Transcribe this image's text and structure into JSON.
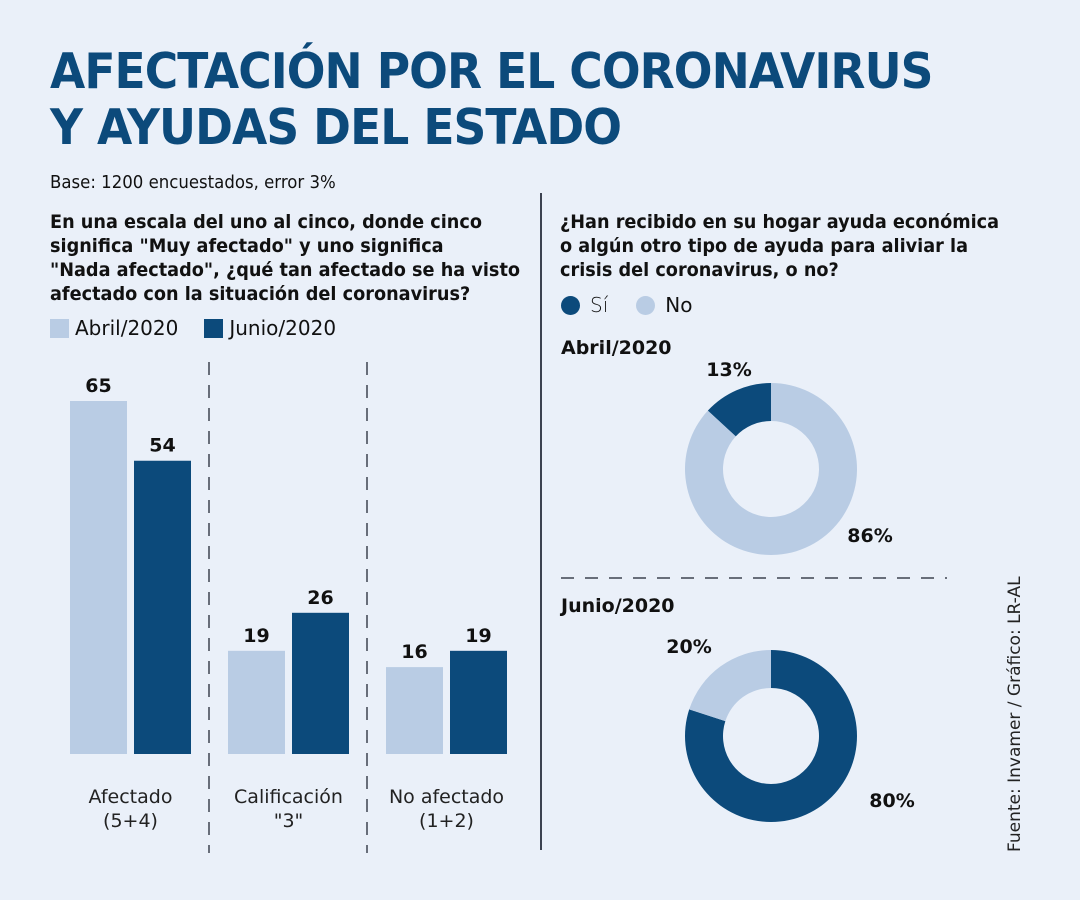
{
  "title_line1": "AFECTACIÓN POR EL CORONAVIRUS",
  "title_line2": "Y AYUDAS DEL ESTADO",
  "subtitle": "Base: 1200 encuestados, error 3%",
  "source": "Fuente: Invamer / Gráfico: LR-AL",
  "colors": {
    "light": "#b9cce4",
    "dark": "#0c4a7b",
    "title": "#0c4a7b",
    "background": "#eaf0f9"
  },
  "left": {
    "question_lines": [
      "En una escala del uno al cinco, donde cinco",
      "significa \"Muy afectado\" y uno significa",
      "\"Nada afectado\", ¿qué tan afectado se ha visto",
      "afectado con la situación del coronavirus?"
    ],
    "legend": [
      {
        "label": "Abril/2020"
      },
      {
        "label": "Junio/2020"
      }
    ]
  },
  "right": {
    "question_lines": [
      "¿Han recibido en su hogar ayuda económica",
      "o algún otro tipo de ayuda para aliviar la",
      "crisis del coronavirus, o no?"
    ],
    "legend": [
      {
        "label": "Sí"
      },
      {
        "label": "No"
      }
    ],
    "periods": [
      "Abril/2020",
      "Junio/2020"
    ]
  },
  "chart_data": [
    {
      "type": "bar",
      "title": "¿Qué tan afectado se ha visto con la situación del coronavirus?",
      "categories": [
        [
          "Afectado",
          "(5+4)"
        ],
        [
          "Calificación",
          "\"3\""
        ],
        [
          "No afectado",
          "(1+2)"
        ]
      ],
      "series": [
        {
          "name": "Abril/2020",
          "values": [
            65,
            19,
            16
          ]
        },
        {
          "name": "Junio/2020",
          "values": [
            54,
            26,
            19
          ]
        }
      ],
      "ylim": [
        0,
        65
      ],
      "grid": false,
      "legend": "top-left",
      "xlabel": "",
      "ylabel": ""
    },
    {
      "type": "pie",
      "title": "Abril/2020",
      "donut": true,
      "slices": [
        {
          "name": "Sí",
          "value": 13,
          "label": "13%"
        },
        {
          "name": "No",
          "value": 86,
          "label": "86%"
        }
      ]
    },
    {
      "type": "pie",
      "title": "Junio/2020",
      "donut": true,
      "slices": [
        {
          "name": "Sí",
          "value": 80,
          "label": "80%"
        },
        {
          "name": "No",
          "value": 20,
          "label": "20%"
        }
      ]
    }
  ]
}
